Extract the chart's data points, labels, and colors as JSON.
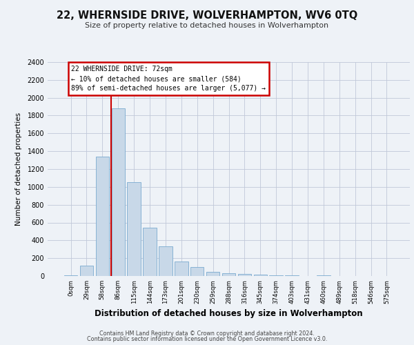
{
  "title": "22, WHERNSIDE DRIVE, WOLVERHAMPTON, WV6 0TQ",
  "subtitle": "Size of property relative to detached houses in Wolverhampton",
  "xlabel": "Distribution of detached houses by size in Wolverhampton",
  "ylabel": "Number of detached properties",
  "footer_line1": "Contains HM Land Registry data © Crown copyright and database right 2024.",
  "footer_line2": "Contains public sector information licensed under the Open Government Licence v3.0.",
  "bar_color": "#c8d8e8",
  "bar_edgecolor": "#7aaacf",
  "grid_color": "#c0c8d8",
  "annotation_box_color": "#cc0000",
  "vline_color": "#cc0000",
  "annotation_text_line1": "22 WHERNSIDE DRIVE: 72sqm",
  "annotation_text_line2": "← 10% of detached houses are smaller (584)",
  "annotation_text_line3": "89% of semi-detached houses are larger (5,077) →",
  "categories": [
    "0sqm",
    "29sqm",
    "58sqm",
    "86sqm",
    "115sqm",
    "144sqm",
    "173sqm",
    "201sqm",
    "230sqm",
    "259sqm",
    "288sqm",
    "316sqm",
    "345sqm",
    "374sqm",
    "403sqm",
    "431sqm",
    "460sqm",
    "489sqm",
    "518sqm",
    "546sqm",
    "575sqm"
  ],
  "values": [
    5,
    120,
    1340,
    1880,
    1050,
    540,
    335,
    160,
    100,
    50,
    30,
    20,
    15,
    10,
    8,
    3,
    5,
    1,
    2,
    0,
    1
  ],
  "ylim": [
    0,
    2400
  ],
  "yticks": [
    0,
    200,
    400,
    600,
    800,
    1000,
    1200,
    1400,
    1600,
    1800,
    2000,
    2200,
    2400
  ],
  "vline_x": 2.55,
  "background_color": "#eef2f7",
  "plot_bg_color": "#eef2f7"
}
